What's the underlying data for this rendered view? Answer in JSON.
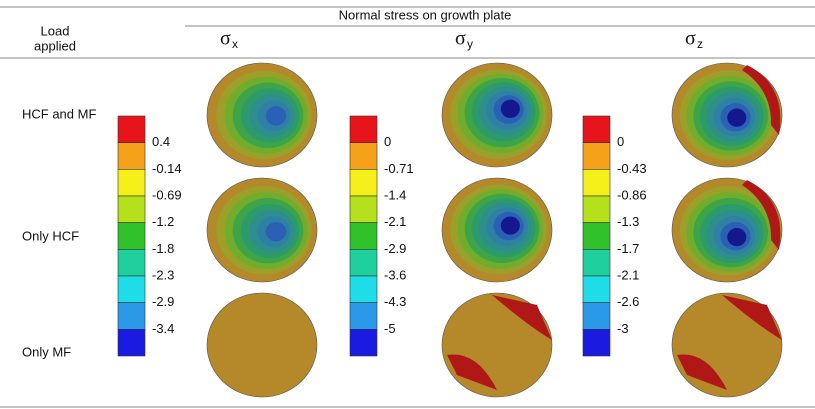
{
  "header": {
    "title": "Normal stress on growth plate",
    "row_header": [
      "Load",
      "applied"
    ],
    "columns": [
      {
        "symbol": "σ",
        "sub": "x"
      },
      {
        "symbol": "σ",
        "sub": "y"
      },
      {
        "symbol": "σ",
        "sub": "z"
      }
    ]
  },
  "rows": [
    "HCF and MF",
    "Only HCF",
    "Only MF"
  ],
  "colorbars": [
    [
      "0.4",
      "-0.14",
      "-0.69",
      "-1.2",
      "-1.8",
      "-2.3",
      "-2.9",
      "-3.4"
    ],
    [
      "0",
      "-0.71",
      "-1.4",
      "-2.1",
      "-2.9",
      "-3.6",
      "-4.3",
      "-5"
    ],
    [
      "0",
      "-0.43",
      "-0.86",
      "-1.3",
      "-1.7",
      "-2.1",
      "-2.6",
      "-3"
    ]
  ]
}
